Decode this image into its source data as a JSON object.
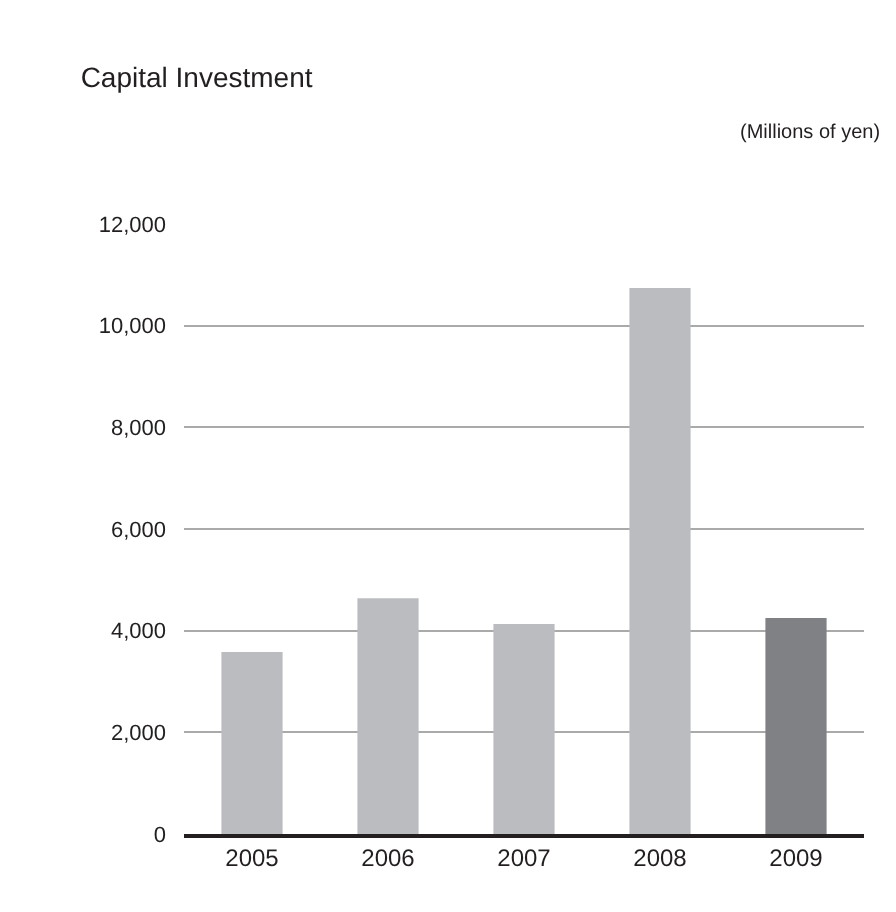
{
  "chart_data": {
    "type": "bar",
    "title": "Capital Investment",
    "annotations": [
      "(Millions of yen)"
    ],
    "categories": [
      "2005",
      "2006",
      "2007",
      "2008",
      "2009"
    ],
    "values": [
      3580,
      4640,
      4130,
      10740,
      4250
    ],
    "colors": [
      "#bbbcbf",
      "#bbbcbf",
      "#bbbcbf",
      "#bbbcbf",
      "#808184"
    ],
    "ylim": [
      0,
      12000
    ],
    "yticks": [
      {
        "value": 0,
        "label": "0"
      },
      {
        "value": 2000,
        "label": "2,000"
      },
      {
        "value": 4000,
        "label": "4,000"
      },
      {
        "value": 6000,
        "label": "6,000"
      },
      {
        "value": 8000,
        "label": "8,000"
      },
      {
        "value": 10000,
        "label": "10,000"
      },
      {
        "value": 12000,
        "label": "12,000"
      }
    ],
    "grid": "y",
    "legend": false
  }
}
